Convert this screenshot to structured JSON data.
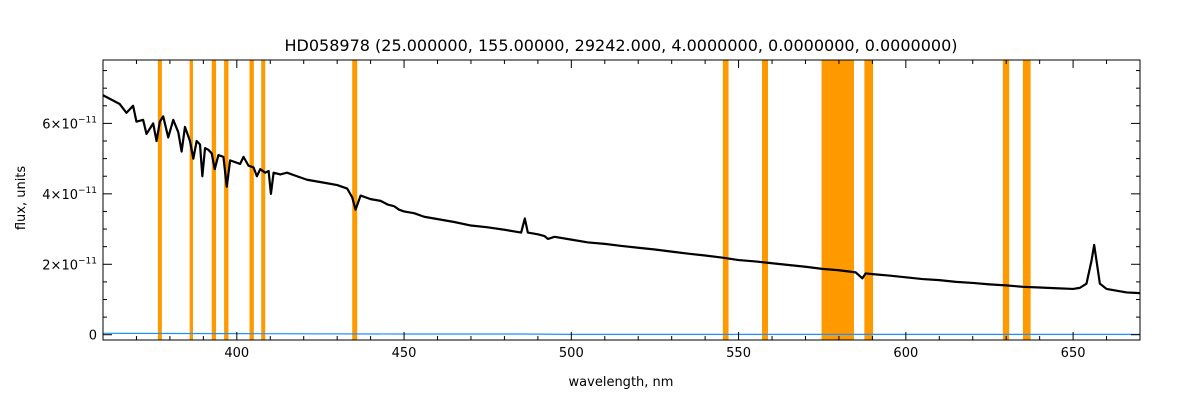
{
  "chart_data": {
    "type": "line",
    "title": "HD058978    (25.000000, 155.00000, 29242.000, 4.0000000, 0.0000000, 0.0000000)",
    "xlabel": "wavelength, nm",
    "ylabel": "flux, units",
    "xlim": [
      360,
      670
    ],
    "ylim": [
      -1.5e-12,
      7.8e-11
    ],
    "x_ticks": [
      400,
      450,
      500,
      550,
      600,
      650
    ],
    "x_tick_labels": [
      "400",
      "450",
      "500",
      "550",
      "600",
      "650"
    ],
    "y_ticks": [
      0,
      2e-11,
      4e-11,
      6e-11
    ],
    "y_tick_labels": [
      {
        "mantissa": "0",
        "exp": ""
      },
      {
        "mantissa": "2×10",
        "exp": "−11"
      },
      {
        "mantissa": "4×10",
        "exp": "−11"
      },
      {
        "mantissa": "6×10",
        "exp": "−11"
      }
    ],
    "grid": false,
    "colors": {
      "spectrum": "#000000",
      "error": "#1e90ff",
      "masked_band": "#ff9900",
      "frame": "#000000"
    },
    "masked_bands_nm": [
      [
        376.4,
        377.6
      ],
      [
        385.9,
        386.9
      ],
      [
        392.5,
        393.8
      ],
      [
        396.2,
        397.5
      ],
      [
        403.8,
        405.1
      ],
      [
        407.3,
        408.5
      ],
      [
        434.5,
        436.0
      ],
      [
        545.3,
        547.0
      ],
      [
        557.0,
        558.8
      ],
      [
        574.8,
        584.5
      ],
      [
        587.6,
        590.2
      ],
      [
        629.0,
        630.9
      ],
      [
        635.0,
        637.3
      ]
    ],
    "series": [
      {
        "x": [
          360,
          362,
          365,
          367,
          369,
          370,
          372,
          373,
          375,
          376,
          377,
          378,
          379.5,
          381,
          382.5,
          383.5,
          384.5,
          386,
          387,
          388,
          389,
          389.7,
          390.5,
          391.5,
          392.5,
          393.4,
          394.5,
          396,
          397,
          398,
          399.5,
          401,
          402,
          403.5,
          405,
          406,
          407,
          408.5,
          409.5,
          410.2,
          411,
          413,
          415,
          418,
          421,
          424,
          427,
          430,
          433,
          434.5,
          435.5,
          437,
          440,
          443,
          445,
          447,
          448.5,
          450,
          453,
          456,
          459,
          462,
          465,
          470,
          475,
          480,
          485,
          486.1,
          487,
          490,
          492,
          493,
          495,
          500,
          505,
          510,
          515,
          520,
          525,
          530,
          535,
          540,
          545,
          550,
          555,
          560,
          565,
          570,
          575,
          580,
          585,
          587,
          588,
          590,
          595,
          600,
          605,
          610,
          615,
          620,
          625,
          630,
          635,
          640,
          645,
          650,
          652,
          654,
          655.5,
          656.3,
          657,
          658,
          660,
          663,
          666,
          670
        ],
        "y": [
          6.8e-11,
          6.7e-11,
          6.55e-11,
          6.3e-11,
          6.5e-11,
          6.05e-11,
          6.1e-11,
          5.7e-11,
          6e-11,
          5.5e-11,
          6.05e-11,
          6.2e-11,
          5.6e-11,
          6.1e-11,
          5.75e-11,
          5.2e-11,
          5.9e-11,
          5.5e-11,
          5e-11,
          5.5e-11,
          5.4e-11,
          4.5e-11,
          5.3e-11,
          5.25e-11,
          5.15e-11,
          4.7e-11,
          5.1e-11,
          5.05e-11,
          4.2e-11,
          4.95e-11,
          4.9e-11,
          4.85e-11,
          5.05e-11,
          4.8e-11,
          4.75e-11,
          4.5e-11,
          4.7e-11,
          4.6e-11,
          4.65e-11,
          4e-11,
          4.6e-11,
          4.55e-11,
          4.6e-11,
          4.5e-11,
          4.4e-11,
          4.35e-11,
          4.3e-11,
          4.25e-11,
          4.15e-11,
          3.9e-11,
          3.55e-11,
          3.95e-11,
          3.85e-11,
          3.8e-11,
          3.7e-11,
          3.65e-11,
          3.55e-11,
          3.5e-11,
          3.45e-11,
          3.35e-11,
          3.3e-11,
          3.25e-11,
          3.2e-11,
          3.1e-11,
          3.05e-11,
          2.98e-11,
          2.9e-11,
          3.3e-11,
          2.9e-11,
          2.85e-11,
          2.8e-11,
          2.72e-11,
          2.78e-11,
          2.7e-11,
          2.62e-11,
          2.58e-11,
          2.52e-11,
          2.47e-11,
          2.42e-11,
          2.36e-11,
          2.3e-11,
          2.25e-11,
          2.19e-11,
          2.12e-11,
          2.08e-11,
          2.03e-11,
          1.98e-11,
          1.93e-11,
          1.87e-11,
          1.83e-11,
          1.77e-11,
          1.6e-11,
          1.74e-11,
          1.72e-11,
          1.68e-11,
          1.63e-11,
          1.58e-11,
          1.55e-11,
          1.5e-11,
          1.47e-11,
          1.43e-11,
          1.4e-11,
          1.36e-11,
          1.34e-11,
          1.32e-11,
          1.3e-11,
          1.33e-11,
          1.45e-11,
          2.1e-11,
          2.55e-11,
          2.1e-11,
          1.45e-11,
          1.3e-11,
          1.25e-11,
          1.2e-11,
          1.18e-11
        ]
      },
      {
        "x": [
          360,
          400,
          450,
          485,
          500,
          550,
          600,
          650,
          670
        ],
        "y": [
          4e-13,
          3e-13,
          2e-13,
          2e-13,
          1e-13,
          1e-13,
          1e-13,
          1e-13,
          1e-13
        ]
      }
    ]
  }
}
